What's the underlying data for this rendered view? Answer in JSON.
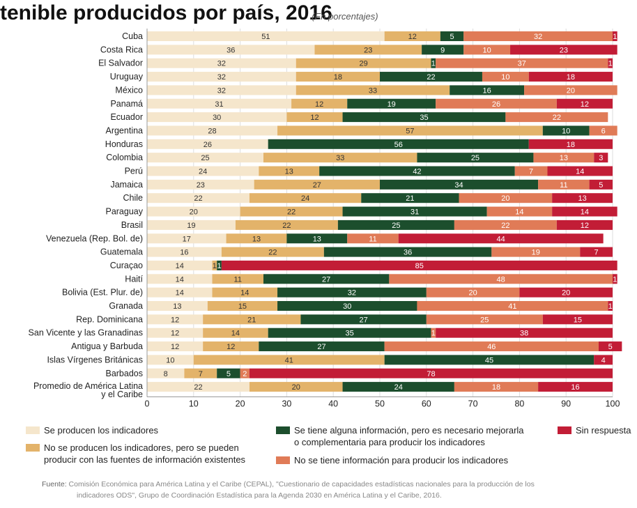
{
  "header": {
    "title": "tenible producidos por país, 2016",
    "subtitle": "(En porcentajes)"
  },
  "colors": {
    "producen": "#f5e6cc",
    "se_pueden": "#e3b36a",
    "alguna_info": "#1c4e2d",
    "no_info": "#e07b57",
    "sin_respuesta": "#c21d36"
  },
  "chart_data": {
    "type": "bar",
    "orientation": "horizontal",
    "stacked": true,
    "xlim": [
      0,
      100
    ],
    "xticks": [
      0,
      10,
      20,
      30,
      40,
      50,
      60,
      70,
      80,
      90,
      100
    ],
    "grid": true,
    "legend_position": "bottom",
    "categories": [
      "Cuba",
      "Costa Rica",
      "El Salvador",
      "Uruguay",
      "México",
      "Panamá",
      "Ecuador",
      "Argentina",
      "Honduras",
      "Colombia",
      "Perú",
      "Jamaica",
      "Chile",
      "Paraguay",
      "Brasil",
      "Venezuela (Rep. Bol. de)",
      "Guatemala",
      "Curaçao",
      "Haití",
      "Bolivia (Est. Plur. de)",
      "Granada",
      "Rep. Dominicana",
      "San Vicente y las Granadinas",
      "Antigua y Barbuda",
      "Islas Vírgenes Británicas",
      "Barbados",
      "Promedio de América Latina|y el Caribe"
    ],
    "series": [
      {
        "name": "Se producen los indicadores",
        "values": [
          51,
          36,
          32,
          32,
          32,
          31,
          30,
          28,
          26,
          25,
          24,
          23,
          22,
          20,
          19,
          17,
          16,
          14,
          14,
          14,
          13,
          12,
          12,
          12,
          10,
          8,
          22
        ]
      },
      {
        "name": "No se producen los indicadores, pero se pueden producir con las fuentes de información existentes",
        "values": [
          12,
          23,
          29,
          18,
          33,
          12,
          12,
          57,
          0,
          33,
          13,
          27,
          24,
          22,
          22,
          13,
          22,
          1,
          11,
          14,
          15,
          21,
          14,
          12,
          41,
          7,
          20
        ]
      },
      {
        "name": "Se tiene alguna información, pero es necesario mejorarla o complementarla para producir los indicadores",
        "values": [
          5,
          9,
          1,
          22,
          16,
          19,
          35,
          10,
          56,
          25,
          42,
          34,
          21,
          31,
          25,
          13,
          36,
          1,
          27,
          32,
          30,
          27,
          35,
          27,
          45,
          5,
          24
        ]
      },
      {
        "name": "No se tiene información para producir los indicadores",
        "values": [
          32,
          10,
          37,
          10,
          20,
          26,
          22,
          6,
          0,
          13,
          7,
          11,
          20,
          14,
          22,
          11,
          19,
          0,
          48,
          20,
          41,
          25,
          1,
          46,
          0,
          2,
          18
        ]
      },
      {
        "name": "Sin respuesta",
        "values": [
          1,
          23,
          1,
          18,
          0,
          12,
          0,
          0,
          18,
          3,
          14,
          5,
          13,
          14,
          12,
          44,
          7,
          85,
          1,
          20,
          1,
          15,
          38,
          5,
          4,
          78,
          16
        ]
      }
    ]
  },
  "legend": [
    {
      "label": "Se producen los indicadores"
    },
    {
      "label": "No se producen los indicadores, pero se pueden",
      "label2": "producir con las fuentes de información existentes"
    },
    {
      "label": "Se tiene alguna información, pero es necesario mejorarla",
      "label2": "o complementaria para producir los indicadores"
    },
    {
      "label": "No se tiene información para producir los indicadores"
    },
    {
      "label": "Sin respuesta"
    }
  ],
  "source": {
    "label": "Fuente:",
    "text": "Comisión Económica para América Latina y el Caribe (CEPAL), \"Cuestionario de capacidades estadísticas nacionales para la producción de los",
    "text2": "indicadores ODS\", Grupo de Coordinación Estadística para la Agenda 2030 en América Latina y el Caribe, 2016."
  }
}
